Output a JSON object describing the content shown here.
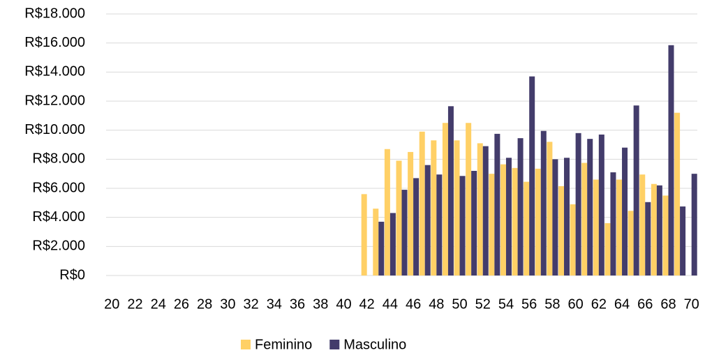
{
  "chart_data": {
    "type": "bar",
    "categories": [
      20,
      null,
      22,
      null,
      24,
      null,
      26,
      null,
      28,
      null,
      30,
      null,
      32,
      null,
      34,
      null,
      36,
      null,
      38,
      null,
      40,
      null,
      42,
      null,
      44,
      null,
      46,
      null,
      48,
      null,
      50,
      null,
      52,
      null,
      54,
      null,
      56,
      null,
      58,
      null,
      60,
      null,
      62,
      null,
      64,
      null,
      66,
      null,
      68,
      null,
      70
    ],
    "series": [
      {
        "name": "Feminino",
        "color": "#ffd066",
        "values": [
          null,
          null,
          null,
          null,
          null,
          null,
          null,
          null,
          null,
          null,
          null,
          null,
          null,
          null,
          null,
          null,
          null,
          null,
          null,
          null,
          null,
          null,
          5600,
          4600,
          8700,
          7900,
          8500,
          9900,
          9300,
          10500,
          9300,
          10500,
          9100,
          7000,
          7650,
          7400,
          6450,
          7350,
          9200,
          6150,
          4900,
          7750,
          6600,
          3600,
          6600,
          4450,
          6950,
          6300,
          5500,
          11200,
          null
        ]
      },
      {
        "name": "Masculino",
        "color": "#433c6b",
        "values": [
          null,
          null,
          null,
          null,
          null,
          null,
          null,
          null,
          null,
          null,
          null,
          null,
          null,
          null,
          null,
          null,
          null,
          null,
          null,
          null,
          null,
          null,
          null,
          3700,
          4300,
          5900,
          6700,
          7600,
          6950,
          11650,
          6850,
          7200,
          8900,
          9750,
          8100,
          9450,
          13700,
          9950,
          8000,
          8100,
          9800,
          9400,
          9700,
          7100,
          8800,
          11700,
          5050,
          6200,
          15850,
          4750,
          7000
        ]
      }
    ],
    "ylim": [
      0,
      18000
    ],
    "yticks": [
      {
        "value": 0,
        "label": "R$0"
      },
      {
        "value": 2000,
        "label": "R$2.000"
      },
      {
        "value": 4000,
        "label": "R$4.000"
      },
      {
        "value": 6000,
        "label": "R$6.000"
      },
      {
        "value": 8000,
        "label": "R$8.000"
      },
      {
        "value": 10000,
        "label": "R$10.000"
      },
      {
        "value": 12000,
        "label": "R$12.000"
      },
      {
        "value": 14000,
        "label": "R$14.000"
      },
      {
        "value": 16000,
        "label": "R$16.000"
      },
      {
        "value": 18000,
        "label": "R$18.000"
      }
    ],
    "grid": true,
    "legend": "bottom"
  }
}
